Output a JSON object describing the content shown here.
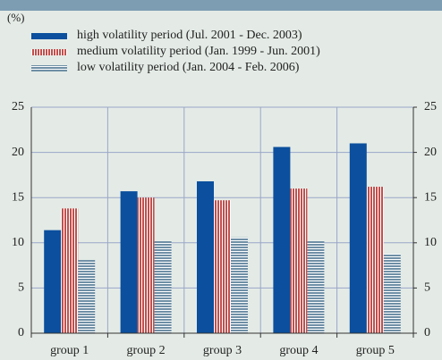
{
  "chart_data": {
    "type": "bar",
    "y_unit_label": "(%)",
    "categories": [
      "group 1",
      "group 2",
      "group 3",
      "group 4",
      "group 5"
    ],
    "series": [
      {
        "name": "high volatility period (Jul. 2001 - Dec. 2003)",
        "color": "#0b4f9e",
        "pattern": "solid",
        "values": [
          11.4,
          15.7,
          16.8,
          20.6,
          21.0
        ]
      },
      {
        "name": "medium volatility period (Jan. 1999 - Jun. 2001)",
        "color": "#c0504d",
        "pattern": "vertical-stripes",
        "values": [
          13.8,
          15.0,
          14.7,
          16.0,
          16.2
        ]
      },
      {
        "name": "low volatility period (Jan. 2004 - Feb. 2006)",
        "color": "#6f8fa6",
        "pattern": "horizontal-stripes",
        "values": [
          8.1,
          10.2,
          10.6,
          10.2,
          8.8
        ]
      }
    ],
    "ylim": [
      0,
      25
    ],
    "yticks": [
      0,
      5,
      10,
      15,
      20,
      25
    ],
    "y2lim": [
      0,
      25
    ],
    "y2ticks": [
      0,
      5,
      10,
      15,
      20,
      25
    ],
    "grid": true
  }
}
